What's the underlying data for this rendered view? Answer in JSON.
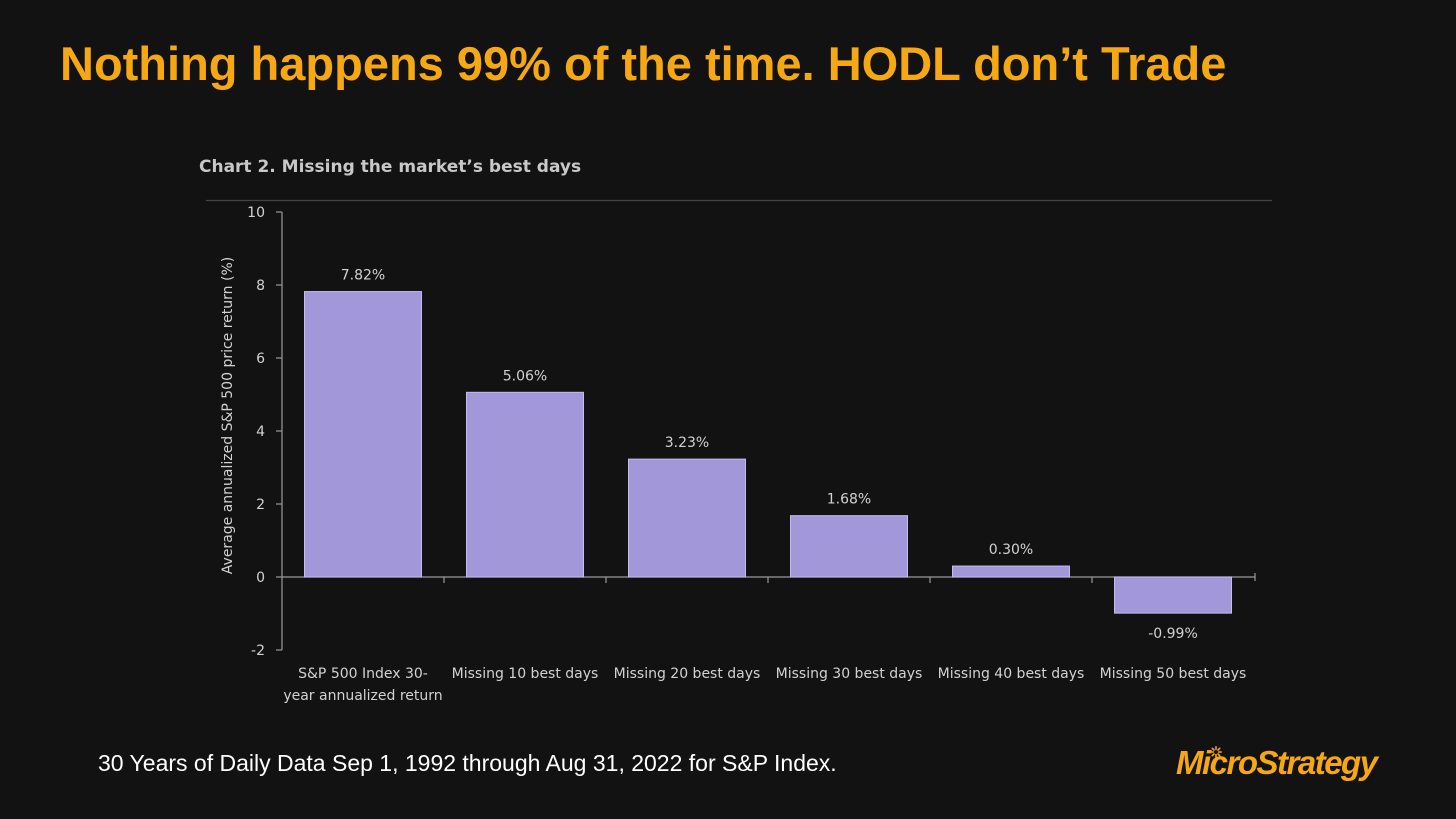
{
  "slide": {
    "title": "Nothing happens 99% of the time.  HODL don’t Trade",
    "footnote": "30 Years of Daily Data Sep 1, 1992 through Aug 31, 2022 for S&P Index.",
    "logo_text": "MicroStrategy",
    "accent_color": "#f5a714",
    "background_color": "#121212"
  },
  "chart_data": {
    "type": "bar",
    "title": "Chart 2. Missing the market’s best days",
    "ylabel": "Average annualized S&P 500 price return (%)",
    "xlabel": "",
    "ylim": [
      -2,
      10
    ],
    "yticks": [
      10,
      8,
      6,
      4,
      2,
      0,
      -2
    ],
    "categories": [
      [
        "S&P 500 Index 30-",
        "year annualized return"
      ],
      [
        "Missing 10 best days"
      ],
      [
        "Missing 20 best days"
      ],
      [
        "Missing 30 best days"
      ],
      [
        "Missing 40 best days"
      ],
      [
        "Missing 50 best days"
      ]
    ],
    "values": [
      7.82,
      5.06,
      3.23,
      1.68,
      0.3,
      -0.99
    ],
    "value_labels": [
      "7.82%",
      "5.06%",
      "3.23%",
      "1.68%",
      "0.30%",
      "-0.99%"
    ],
    "bar_color": "#a297d9",
    "grid": false,
    "legend": "none"
  }
}
